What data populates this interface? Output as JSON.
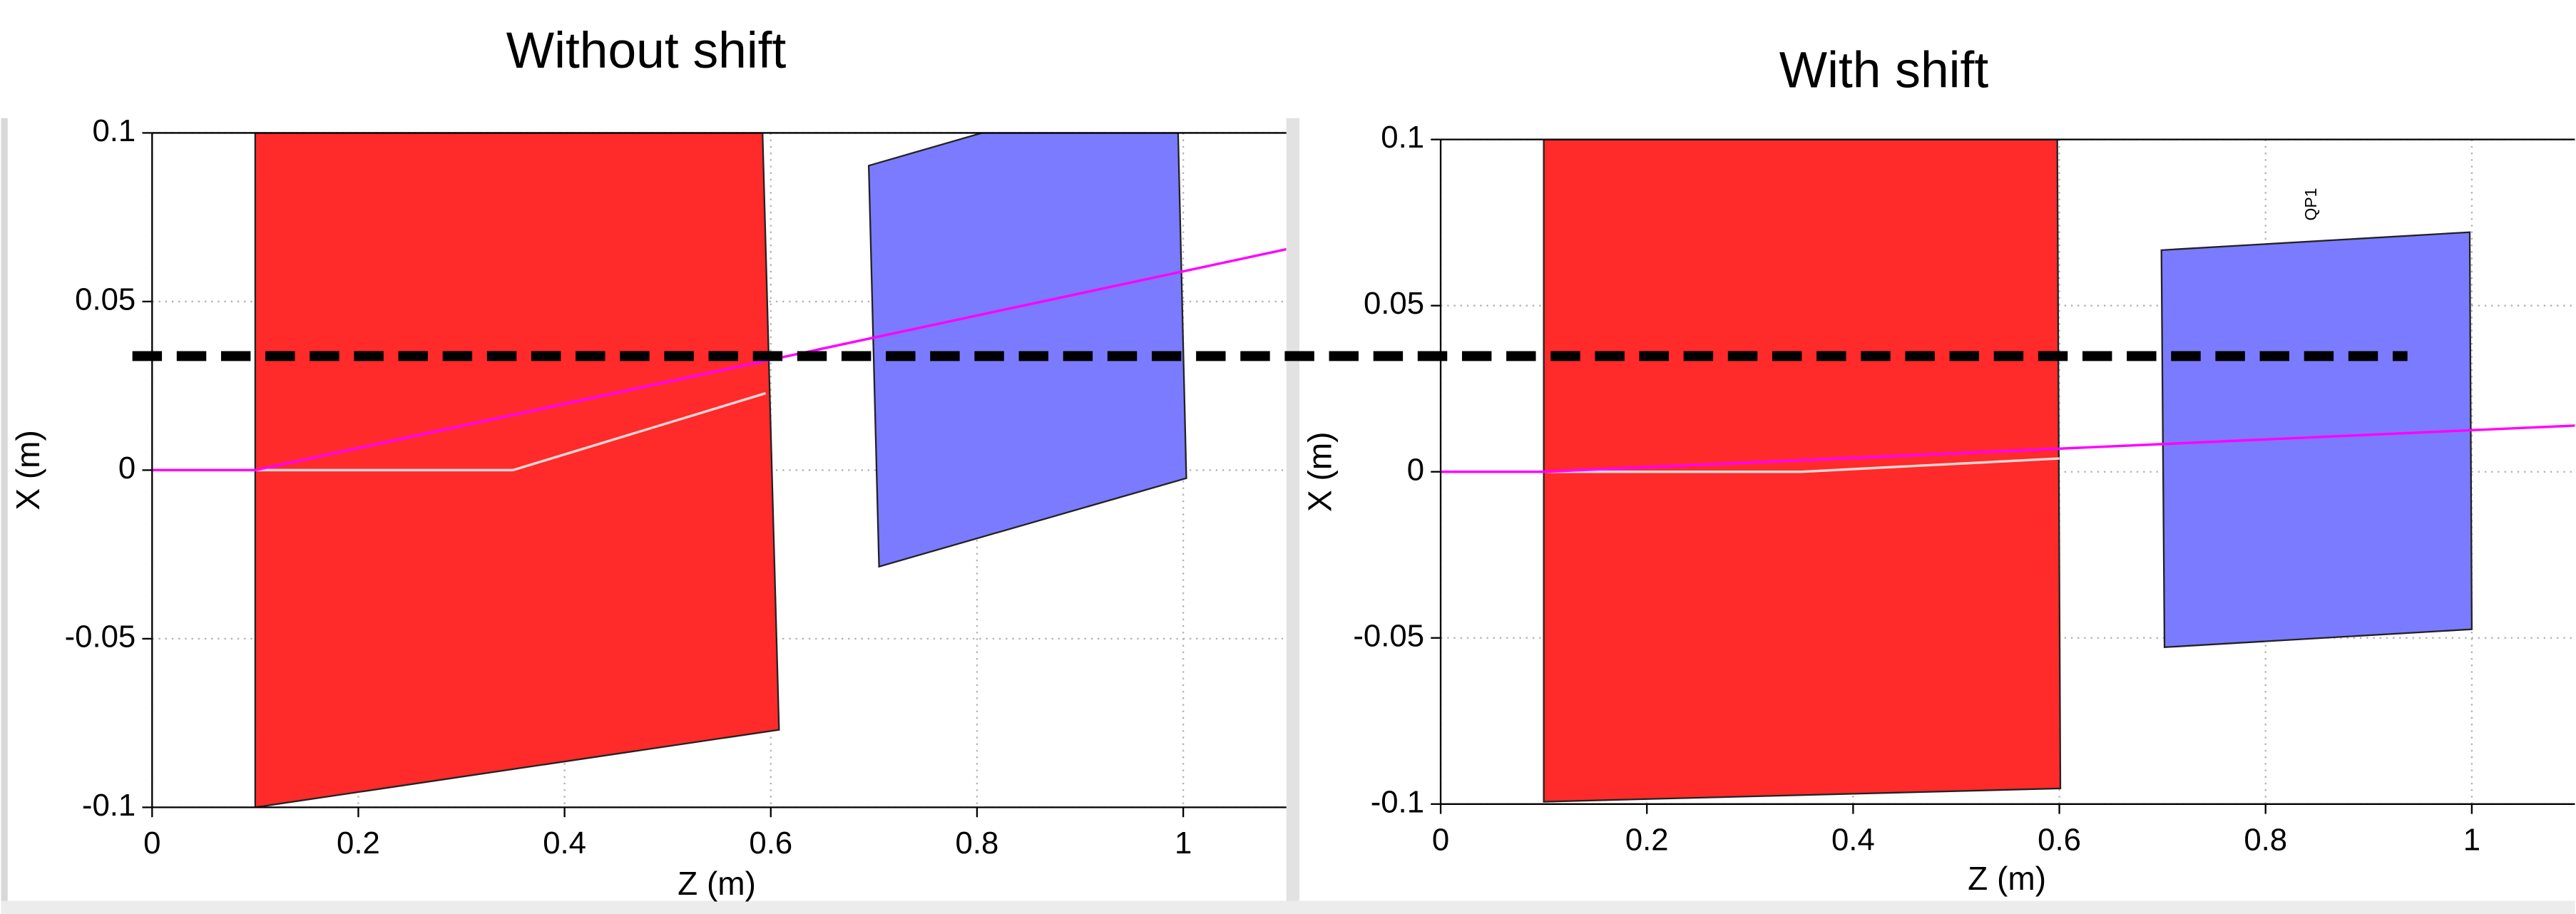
{
  "chart_data": [
    {
      "type": "layout",
      "title": "Without shift",
      "x_label": "Z (m)",
      "y_label": "X (m)",
      "xlim": [
        0,
        1.1
      ],
      "ylim": [
        -0.1,
        0.1
      ],
      "xticks": [
        0,
        0.2,
        0.4,
        0.6,
        0.8,
        1
      ],
      "yticks": [
        -0.1,
        -0.05,
        0,
        0.05,
        0.1
      ],
      "grid": true,
      "elements": [
        {
          "color": "#ff2a2a",
          "z": [
            0.1,
            0.592,
            0.608,
            0.1
          ],
          "x": [
            0.1,
            0.1,
            -0.077,
            -0.1
          ]
        },
        {
          "color": "#7b7bff",
          "z": [
            0.695,
            0.805,
            0.995,
            1.003,
            0.705
          ],
          "x": [
            0.0903,
            0.1,
            0.1,
            -0.0024,
            -0.0286
          ]
        }
      ],
      "lines": [
        {
          "color": "#f2d6d6",
          "z": [
            0.1,
            0.35,
            0.595
          ],
          "x": [
            0,
            0,
            0.0228
          ]
        },
        {
          "color": "#ff00ff",
          "z": [
            0,
            0.1,
            1.1
          ],
          "x": [
            0,
            0,
            0.0655
          ]
        }
      ]
    },
    {
      "type": "layout",
      "title": "With shift",
      "x_label": "Z (m)",
      "y_label": "X (m)",
      "xlim": [
        0,
        1.1
      ],
      "ylim": [
        -0.1,
        0.1
      ],
      "xticks": [
        0,
        0.2,
        0.4,
        0.6,
        0.8,
        1
      ],
      "yticks": [
        -0.1,
        -0.05,
        0,
        0.05,
        0.1
      ],
      "grid": true,
      "elements": [
        {
          "color": "#ff2a2a",
          "z": [
            0.1,
            0.598,
            0.601,
            0.1
          ],
          "x": [
            0.1,
            0.1,
            -0.0953,
            -0.0993
          ]
        },
        {
          "color": "#7b7bff",
          "z": [
            0.699,
            0.998,
            1.0,
            0.702
          ],
          "x": [
            0.0667,
            0.0721,
            -0.0474,
            -0.0528
          ]
        }
      ],
      "lines": [
        {
          "color": "#f2d6d6",
          "z": [
            0.1,
            0.35,
            0.6
          ],
          "x": [
            0,
            0,
            0.004
          ]
        },
        {
          "color": "#ff00ff",
          "z": [
            0,
            0.1,
            1.1
          ],
          "x": [
            0,
            0,
            0.0139
          ]
        }
      ],
      "annotations": [
        {
          "text": "QP1",
          "z": 0.845,
          "x": 0.0805
        }
      ]
    }
  ]
}
